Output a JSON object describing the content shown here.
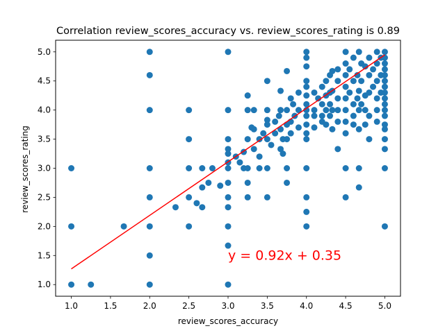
{
  "chart_data": {
    "type": "scatter",
    "title": "Correlation review_scores_accuracy vs. review_scores_rating is 0.89",
    "xlabel": "review_scores_accuracy",
    "ylabel": "review_scores_rating",
    "xlim": [
      0.8,
      5.2
    ],
    "ylim": [
      0.8,
      5.2
    ],
    "xticks": [
      1.0,
      1.5,
      2.0,
      2.5,
      3.0,
      3.5,
      4.0,
      4.5,
      5.0
    ],
    "xtick_labels": [
      "1.0",
      "1.5",
      "2.0",
      "2.5",
      "3.0",
      "3.5",
      "4.0",
      "4.5",
      "5.0"
    ],
    "yticks": [
      1.0,
      1.5,
      2.0,
      2.5,
      3.0,
      3.5,
      4.0,
      4.5,
      5.0
    ],
    "ytick_labels": [
      "1.0",
      "1.5",
      "2.0",
      "2.5",
      "3.0",
      "3.5",
      "4.0",
      "4.5",
      "5.0"
    ],
    "grid": false,
    "colors": {
      "points": "#1f77b4",
      "fit_line": "#ff0000",
      "equation": "#ff0000"
    },
    "fit_line": {
      "slope": 0.92,
      "intercept": 0.35,
      "x_range": [
        1.0,
        5.0
      ]
    },
    "annotation": {
      "text": "y = 0.92x + 0.35",
      "x": 3.0,
      "y": 1.5
    },
    "points": [
      [
        1.0,
        3.0
      ],
      [
        1.0,
        2.0
      ],
      [
        1.0,
        1.0
      ],
      [
        1.25,
        1.0
      ],
      [
        1.67,
        2.0
      ],
      [
        2.0,
        5.0
      ],
      [
        2.0,
        4.6
      ],
      [
        2.0,
        4.0
      ],
      [
        2.0,
        3.0
      ],
      [
        2.0,
        2.5
      ],
      [
        2.0,
        2.0
      ],
      [
        2.0,
        1.5
      ],
      [
        2.0,
        1.0
      ],
      [
        2.33,
        2.33
      ],
      [
        2.5,
        4.0
      ],
      [
        2.5,
        3.5
      ],
      [
        2.5,
        3.0
      ],
      [
        2.5,
        2.5
      ],
      [
        2.5,
        2.0
      ],
      [
        2.6,
        2.4
      ],
      [
        2.67,
        3.0
      ],
      [
        2.67,
        2.67
      ],
      [
        2.67,
        2.33
      ],
      [
        2.75,
        2.75
      ],
      [
        2.8,
        3.0
      ],
      [
        2.9,
        2.7
      ],
      [
        3.0,
        5.0
      ],
      [
        3.0,
        4.0
      ],
      [
        3.0,
        3.5
      ],
      [
        3.0,
        3.33
      ],
      [
        3.0,
        3.25
      ],
      [
        3.0,
        3.1
      ],
      [
        3.0,
        3.0
      ],
      [
        3.0,
        2.75
      ],
      [
        3.0,
        2.5
      ],
      [
        3.0,
        2.33
      ],
      [
        3.0,
        2.0
      ],
      [
        3.0,
        1.67
      ],
      [
        3.0,
        1.0
      ],
      [
        3.1,
        3.2
      ],
      [
        3.15,
        3.1
      ],
      [
        3.2,
        3.28
      ],
      [
        3.2,
        3.0
      ],
      [
        3.25,
        4.25
      ],
      [
        3.25,
        4.0
      ],
      [
        3.25,
        3.5
      ],
      [
        3.25,
        3.0
      ],
      [
        3.25,
        2.75
      ],
      [
        3.25,
        2.5
      ],
      [
        3.3,
        3.7
      ],
      [
        3.33,
        4.0
      ],
      [
        3.33,
        3.67
      ],
      [
        3.33,
        3.33
      ],
      [
        3.4,
        3.2
      ],
      [
        3.4,
        3.0
      ],
      [
        3.4,
        3.5
      ],
      [
        3.45,
        3.6
      ],
      [
        3.5,
        4.5
      ],
      [
        3.5,
        4.0
      ],
      [
        3.5,
        3.83
      ],
      [
        3.5,
        3.75
      ],
      [
        3.5,
        3.5
      ],
      [
        3.5,
        3.0
      ],
      [
        3.5,
        2.5
      ],
      [
        3.55,
        3.4
      ],
      [
        3.6,
        3.8
      ],
      [
        3.6,
        3.6
      ],
      [
        3.65,
        3.9
      ],
      [
        3.67,
        4.33
      ],
      [
        3.67,
        4.0
      ],
      [
        3.67,
        3.67
      ],
      [
        3.67,
        3.33
      ],
      [
        3.7,
        3.5
      ],
      [
        3.7,
        3.25
      ],
      [
        3.75,
        4.67
      ],
      [
        3.75,
        4.0
      ],
      [
        3.75,
        3.75
      ],
      [
        3.75,
        3.5
      ],
      [
        3.75,
        3.0
      ],
      [
        3.75,
        2.75
      ],
      [
        3.8,
        4.2
      ],
      [
        3.8,
        3.8
      ],
      [
        3.8,
        3.6
      ],
      [
        3.83,
        4.1
      ],
      [
        3.85,
        3.9
      ],
      [
        3.9,
        4.3
      ],
      [
        3.9,
        4.0
      ],
      [
        3.9,
        3.7
      ],
      [
        4.0,
        5.0
      ],
      [
        4.0,
        4.9
      ],
      [
        4.0,
        4.75
      ],
      [
        4.0,
        4.5
      ],
      [
        4.0,
        4.4
      ],
      [
        4.0,
        4.25
      ],
      [
        4.0,
        4.1
      ],
      [
        4.0,
        4.0
      ],
      [
        4.0,
        3.9
      ],
      [
        4.0,
        3.75
      ],
      [
        4.0,
        3.6
      ],
      [
        4.0,
        3.5
      ],
      [
        4.0,
        3.0
      ],
      [
        4.0,
        2.5
      ],
      [
        4.0,
        2.25
      ],
      [
        4.0,
        2.0
      ],
      [
        4.1,
        4.3
      ],
      [
        4.1,
        4.0
      ],
      [
        4.1,
        3.9
      ],
      [
        4.1,
        3.7
      ],
      [
        4.15,
        4.2
      ],
      [
        4.2,
        4.4
      ],
      [
        4.2,
        4.1
      ],
      [
        4.2,
        3.9
      ],
      [
        4.2,
        3.8
      ],
      [
        4.25,
        4.5
      ],
      [
        4.25,
        4.25
      ],
      [
        4.25,
        4.0
      ],
      [
        4.25,
        3.75
      ],
      [
        4.3,
        4.6
      ],
      [
        4.3,
        4.3
      ],
      [
        4.3,
        4.1
      ],
      [
        4.3,
        3.9
      ],
      [
        4.33,
        4.67
      ],
      [
        4.33,
        4.33
      ],
      [
        4.33,
        4.0
      ],
      [
        4.33,
        3.67
      ],
      [
        4.4,
        4.7
      ],
      [
        4.4,
        4.5
      ],
      [
        4.4,
        4.2
      ],
      [
        4.4,
        4.0
      ],
      [
        4.4,
        3.8
      ],
      [
        4.4,
        3.33
      ],
      [
        4.5,
        5.0
      ],
      [
        4.5,
        4.8
      ],
      [
        4.5,
        4.6
      ],
      [
        4.5,
        4.4
      ],
      [
        4.5,
        4.2
      ],
      [
        4.5,
        4.0
      ],
      [
        4.5,
        3.8
      ],
      [
        4.5,
        3.6
      ],
      [
        4.5,
        3.0
      ],
      [
        4.5,
        2.5
      ],
      [
        4.55,
        4.7
      ],
      [
        4.55,
        4.3
      ],
      [
        4.6,
        4.9
      ],
      [
        4.6,
        4.5
      ],
      [
        4.6,
        4.1
      ],
      [
        4.6,
        3.9
      ],
      [
        4.6,
        3.75
      ],
      [
        4.65,
        4.6
      ],
      [
        4.65,
        4.2
      ],
      [
        4.67,
        5.0
      ],
      [
        4.67,
        4.33
      ],
      [
        4.67,
        4.0
      ],
      [
        4.67,
        3.67
      ],
      [
        4.67,
        3.0
      ],
      [
        4.67,
        2.67
      ],
      [
        4.7,
        4.8
      ],
      [
        4.7,
        4.5
      ],
      [
        4.7,
        4.1
      ],
      [
        4.75,
        4.75
      ],
      [
        4.75,
        4.25
      ],
      [
        4.75,
        4.0
      ],
      [
        4.75,
        3.75
      ],
      [
        4.8,
        4.9
      ],
      [
        4.8,
        4.6
      ],
      [
        4.8,
        4.3
      ],
      [
        4.8,
        3.9
      ],
      [
        4.8,
        3.5
      ],
      [
        4.85,
        4.7
      ],
      [
        4.85,
        4.4
      ],
      [
        4.9,
        5.0
      ],
      [
        4.9,
        4.8
      ],
      [
        4.9,
        4.5
      ],
      [
        4.9,
        4.2
      ],
      [
        4.9,
        4.0
      ],
      [
        4.9,
        3.8
      ],
      [
        4.95,
        4.9
      ],
      [
        4.95,
        4.6
      ],
      [
        4.95,
        4.3
      ],
      [
        5.0,
        5.0
      ],
      [
        5.0,
        4.9
      ],
      [
        5.0,
        4.8
      ],
      [
        5.0,
        4.7
      ],
      [
        5.0,
        4.6
      ],
      [
        5.0,
        4.5
      ],
      [
        5.0,
        4.4
      ],
      [
        5.0,
        4.3
      ],
      [
        5.0,
        4.2
      ],
      [
        5.0,
        4.1
      ],
      [
        5.0,
        4.0
      ],
      [
        5.0,
        3.9
      ],
      [
        5.0,
        3.75
      ],
      [
        5.0,
        3.67
      ],
      [
        5.0,
        3.5
      ],
      [
        5.0,
        3.33
      ],
      [
        5.0,
        3.0
      ],
      [
        5.0,
        2.0
      ]
    ]
  }
}
